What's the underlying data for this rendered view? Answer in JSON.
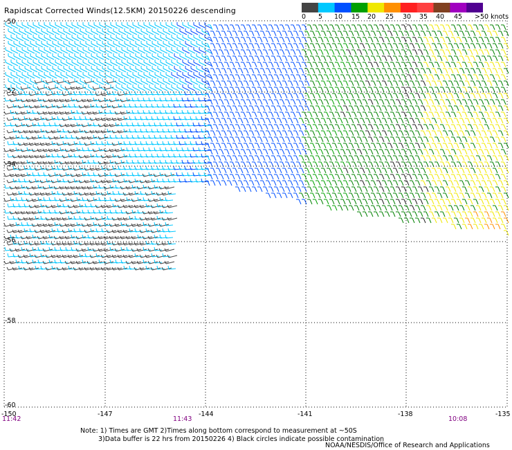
{
  "title": "Rapidscat Corrected Winds(12.5KM) 20150226 descending",
  "legend": {
    "labels": [
      "0",
      "5",
      "10",
      "15",
      "20",
      "25",
      "30",
      "35",
      "40",
      "45",
      ">50 knots"
    ],
    "colors": [
      "#444444",
      "#00c8ff",
      "#0050ff",
      "#00a000",
      "#f0e800",
      "#ff9000",
      "#ff2020",
      "#ff4040",
      "#804020",
      "#a000c0",
      "#500090"
    ]
  },
  "axes": {
    "lat_ticks": [
      "-50",
      "-52",
      "-54",
      "-56",
      "-58",
      "-60"
    ],
    "lon_ticks": [
      "-150",
      "-147",
      "-144",
      "-141",
      "-138",
      "-135"
    ]
  },
  "times": {
    "left": "11:42",
    "middle": "11:43",
    "right": "10:08"
  },
  "notes": {
    "line1": "Note: 1) Times are GMT 2)Times along bottom correspond to measurement at ~50S",
    "line2": "3)Data buffer is 22 hrs from 20150226 4) Black circles indicate possible contamination"
  },
  "credit": "NOAA/NESDIS/Office of Research and Applications"
}
